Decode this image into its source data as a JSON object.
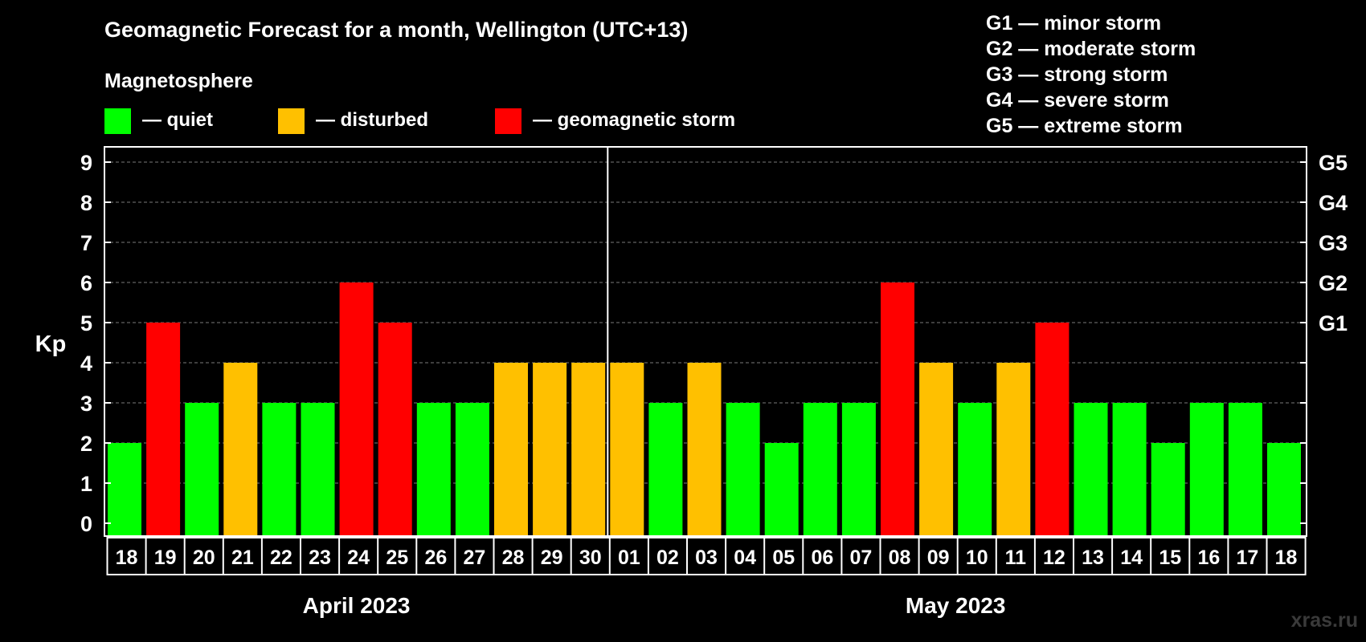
{
  "chart_data": {
    "type": "bar",
    "title": "Geomagnetic Forecast for a month, Wellington (UTC+13)",
    "legend_title": "Magnetosphere",
    "legend": [
      {
        "key": "quiet",
        "label": "— quiet",
        "color": "#00ff00"
      },
      {
        "key": "disturbed",
        "label": "— disturbed",
        "color": "#ffc000"
      },
      {
        "key": "storm",
        "label": "— geomagnetic storm",
        "color": "#ff0000"
      }
    ],
    "storm_scale": [
      "G1 — minor storm",
      "G2 — moderate storm",
      "G3 — strong storm",
      "G4 — severe storm",
      "G5 — extreme storm"
    ],
    "ylabel": "Kp",
    "ylim": [
      0,
      9
    ],
    "y_ticks": [
      "0",
      "1",
      "2",
      "3",
      "4",
      "5",
      "6",
      "7",
      "8",
      "9"
    ],
    "right_ticks": [
      {
        "value": 5,
        "label": "G1"
      },
      {
        "value": 6,
        "label": "G2"
      },
      {
        "value": 7,
        "label": "G3"
      },
      {
        "value": 8,
        "label": "G4"
      },
      {
        "value": 9,
        "label": "G5"
      }
    ],
    "categories": [
      "18",
      "19",
      "20",
      "21",
      "22",
      "23",
      "24",
      "25",
      "26",
      "27",
      "28",
      "29",
      "30",
      "01",
      "02",
      "03",
      "04",
      "05",
      "06",
      "07",
      "08",
      "09",
      "10",
      "11",
      "12",
      "13",
      "14",
      "15",
      "16",
      "17",
      "18"
    ],
    "values": [
      2,
      5,
      3,
      4,
      3,
      3,
      6,
      5,
      3,
      3,
      4,
      4,
      4,
      4,
      3,
      4,
      3,
      2,
      3,
      3,
      6,
      4,
      3,
      4,
      5,
      3,
      3,
      2,
      3,
      3,
      2
    ],
    "months": [
      {
        "label": "April 2023",
        "from": 0,
        "to": 12
      },
      {
        "label": "May 2023",
        "from": 13,
        "to": 30
      }
    ],
    "grid": true
  },
  "watermark": "xras.ru"
}
